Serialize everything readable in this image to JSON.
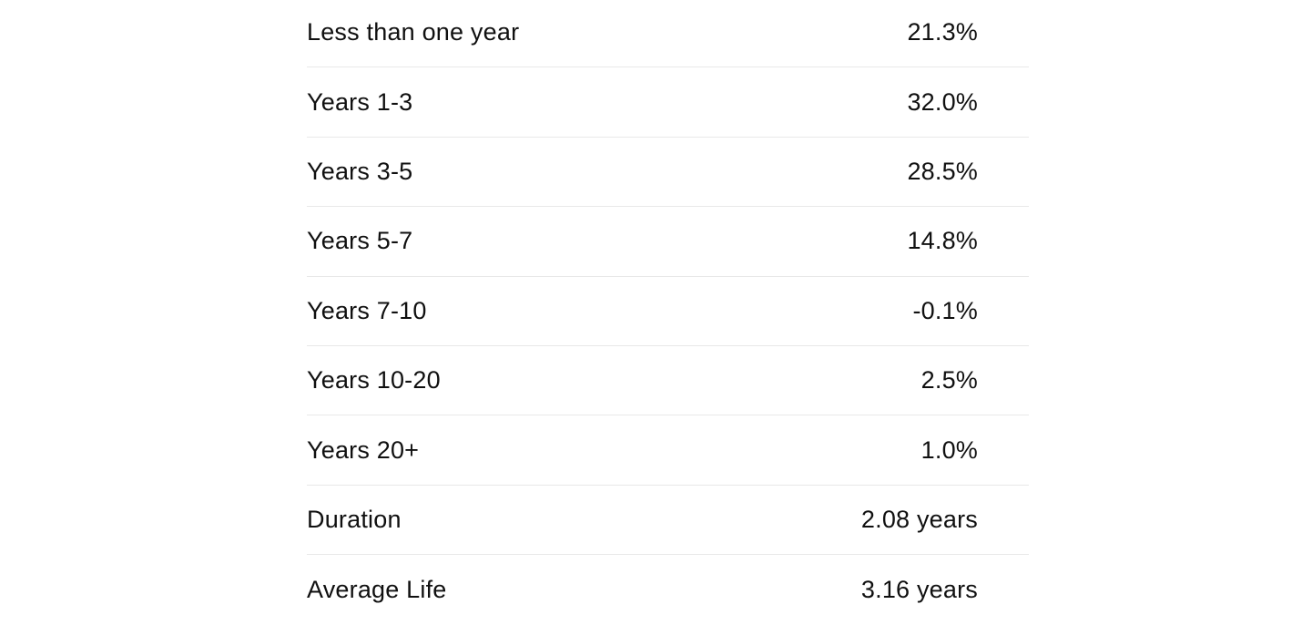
{
  "table": {
    "rows": [
      {
        "label": "Less than one year",
        "value": "21.3%"
      },
      {
        "label": "Years 1-3",
        "value": "32.0%"
      },
      {
        "label": "Years 3-5",
        "value": "28.5%"
      },
      {
        "label": "Years 5-7",
        "value": "14.8%"
      },
      {
        "label": "Years 7-10",
        "value": "-0.1%"
      },
      {
        "label": "Years 10-20",
        "value": "2.5%"
      },
      {
        "label": "Years 20+",
        "value": "1.0%"
      },
      {
        "label": "Duration",
        "value": "2.08 years"
      },
      {
        "label": "Average Life",
        "value": "3.16 years"
      }
    ]
  },
  "chart_data": {
    "type": "table",
    "categories": [
      "Less than one year",
      "Years 1-3",
      "Years 3-5",
      "Years 5-7",
      "Years 7-10",
      "Years 10-20",
      "Years 20+"
    ],
    "values_percent": [
      21.3,
      32.0,
      28.5,
      14.8,
      -0.1,
      2.5,
      1.0
    ],
    "summary_rows": [
      {
        "label": "Duration",
        "value_years": 2.08
      },
      {
        "label": "Average Life",
        "value_years": 3.16
      }
    ],
    "title": "",
    "legend": false,
    "grid": "horizontal-dividers"
  },
  "colors": {
    "background": "#ffffff",
    "text": "#101010",
    "divider": "#e8e8e8"
  }
}
